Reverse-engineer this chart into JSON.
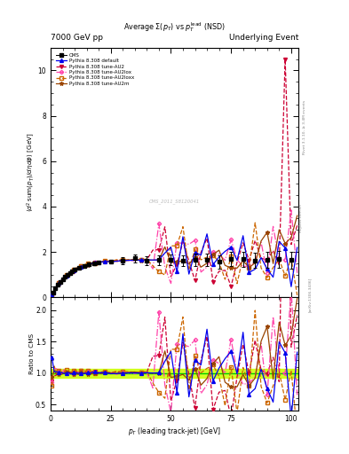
{
  "title_left": "7000 GeV pp",
  "title_right": "Underlying Event",
  "plot_title": "Average $\\Sigma(p_T)$ vs $p_T^{\\mathrm{lead}}$ (NSD)",
  "ylabel_main": "$\\langle d^2\\,\\mathrm{sum}(p_T)/d\\eta d\\phi\\rangle$ [GeV]",
  "ylabel_ratio": "Ratio to CMS",
  "xlabel": "$p_T$ (leading track-jet) [GeV]",
  "right_label_top": "Rivet 3.1.10, ≥ 3.4M events",
  "right_label_bot": "[arXiv:1306.3436]",
  "right_label_mid": "mcplots.cern.ch",
  "watermark": "CMS_2011_S8120041",
  "ylim_main": [
    0,
    11
  ],
  "ylim_ratio": [
    0.4,
    2.2
  ],
  "xticks": [
    0,
    25,
    50,
    75,
    100
  ],
  "yticks_main": [
    0,
    2,
    4,
    6,
    8,
    10
  ],
  "yticks_ratio": [
    0.5,
    1.0,
    1.5,
    2.0
  ],
  "cms_color": "#000000",
  "default_color": "#0000ee",
  "au2_color": "#cc0033",
  "au2lox_color": "#ff44aa",
  "au2loxx_color": "#cc6600",
  "au2m_color": "#994400",
  "bg_color": "#ffffff",
  "ratio_band_color": "#ccff00",
  "ratio_line_color": "#00cc00",
  "xlim": [
    0,
    103
  ]
}
